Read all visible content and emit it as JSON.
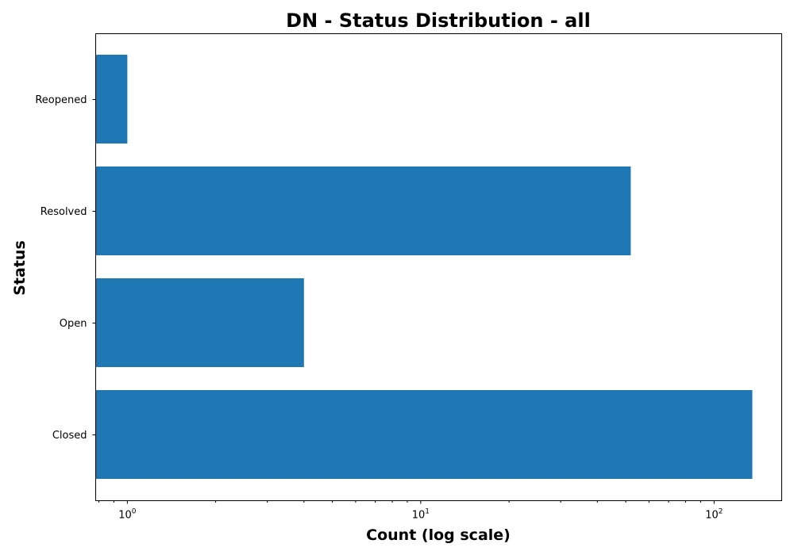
{
  "chart_data": {
    "type": "bar",
    "orientation": "horizontal",
    "title": "DN - Status Distribution - all",
    "xlabel": "Count (log scale)",
    "ylabel": "Status",
    "x_scale": "log",
    "xlim": [
      0.78,
      170
    ],
    "x_ticks": [
      {
        "value": 1,
        "base": "10",
        "exp": "0"
      },
      {
        "value": 10,
        "base": "10",
        "exp": "1"
      },
      {
        "value": 100,
        "base": "10",
        "exp": "2"
      }
    ],
    "categories": [
      "Closed",
      "Open",
      "Resolved",
      "Reopened"
    ],
    "values": [
      135,
      4,
      52,
      1
    ],
    "bar_color": "#1f77b4",
    "grid": false,
    "legend": "none"
  }
}
